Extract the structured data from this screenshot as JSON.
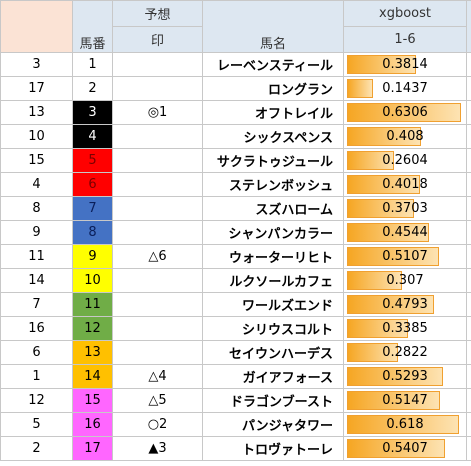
{
  "header": {
    "col_rank": null,
    "horse_number": "馬番",
    "prediction_top": "予想",
    "prediction_bottom": "印",
    "horse_name": "馬名",
    "model_top": "xgboost",
    "model_bottom": "1-6"
  },
  "table": {
    "rows": [
      [
        3,
        1,
        null,
        "レーベンスティール",
        0.3814
      ],
      [
        17,
        2,
        null,
        "ロングラン",
        0.1437
      ],
      [
        13,
        3,
        "◎1",
        "オフトレイル",
        0.6306
      ],
      [
        10,
        4,
        null,
        "シックスペンス",
        0.408
      ],
      [
        15,
        5,
        null,
        "サクラトゥジュール",
        0.2604
      ],
      [
        4,
        6,
        null,
        "ステレンボッシュ",
        0.4018
      ],
      [
        8,
        7,
        null,
        "スズハローム",
        0.3703
      ],
      [
        9,
        8,
        null,
        "シャンパンカラー",
        0.4544
      ],
      [
        11,
        9,
        "△6",
        "ウォーターリヒト",
        0.5107
      ],
      [
        14,
        10,
        null,
        "ルクソールカフェ",
        0.307
      ],
      [
        7,
        11,
        null,
        "ワールズエンド",
        0.4793
      ],
      [
        16,
        12,
        null,
        "シリウスコルト",
        0.3385
      ],
      [
        6,
        13,
        null,
        "セイウンハーデス",
        0.2822
      ],
      [
        1,
        14,
        "△4",
        "ガイアフォース",
        0.5293
      ],
      [
        12,
        15,
        "△5",
        "ドラゴンブースト",
        0.5147
      ],
      [
        5,
        16,
        "○2",
        "パンジャタワー",
        0.618
      ],
      [
        2,
        17,
        "▲3",
        "トロヴァトーレ",
        0.5407
      ]
    ]
  }
}
